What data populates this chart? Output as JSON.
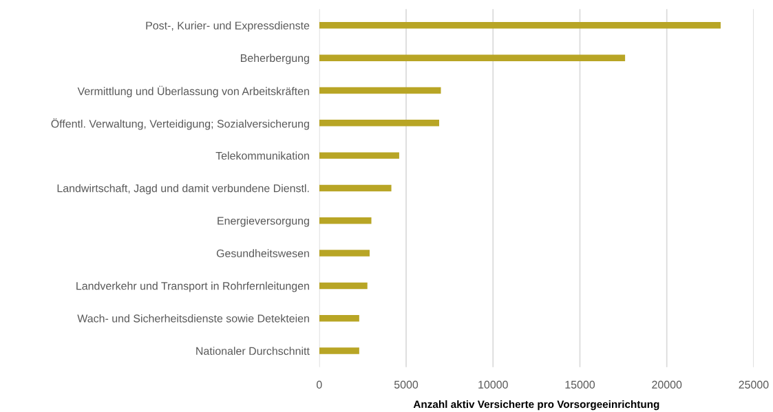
{
  "chart_data": {
    "type": "bar",
    "orientation": "horizontal",
    "categories": [
      "Post-, Kurier- und Expressdienste",
      "Beherbergung",
      "Vermittlung und Überlassung von Arbeitskräften",
      "Öffentl. Verwaltung, Verteidigung; Sozialversicherung",
      "Telekommunikation",
      "Landwirtschaft, Jagd und damit verbundene Dienstl.",
      "Energieversorgung",
      "Gesundheitswesen",
      "Landverkehr und Transport in Rohrfernleitungen",
      "Wach- und Sicherheitsdienste sowie Detekteien",
      "Nationaler Durchschnitt"
    ],
    "values": [
      23100,
      17600,
      7000,
      6900,
      4600,
      4150,
      3000,
      2900,
      2770,
      2300,
      2300
    ],
    "color": "#b8a525",
    "xlabel": "Anzahl aktiv Versicherte pro Vorsorgeeinrichtung",
    "xlim": [
      0,
      25000
    ],
    "xticks": [
      0,
      5000,
      10000,
      15000,
      20000,
      25000
    ],
    "grid": "x",
    "legend": false
  }
}
